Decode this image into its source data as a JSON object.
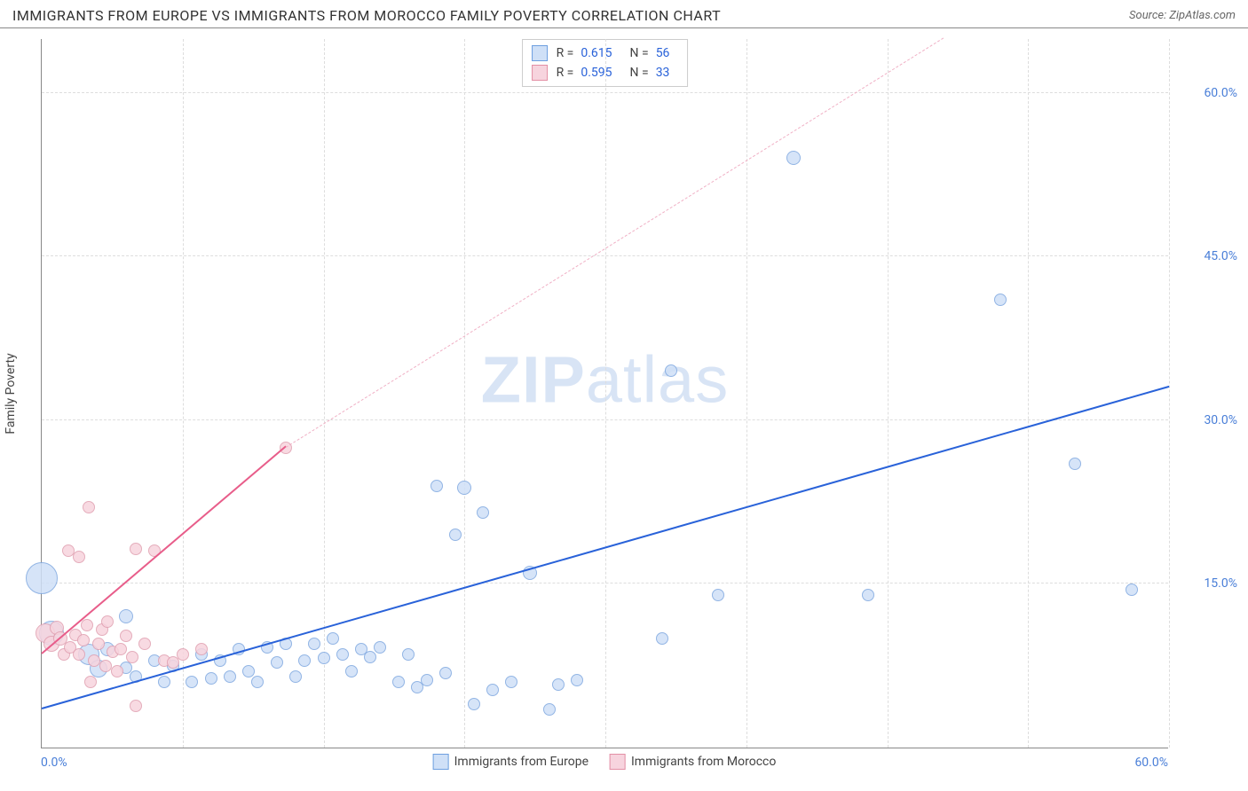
{
  "header": {
    "title": "IMMIGRANTS FROM EUROPE VS IMMIGRANTS FROM MOROCCO FAMILY POVERTY CORRELATION CHART",
    "source": "Source: ZipAtlas.com"
  },
  "chart": {
    "type": "scatter",
    "ylabel": "Family Poverty",
    "xlim": [
      0,
      60
    ],
    "ylim": [
      0,
      65
    ],
    "xticks": [
      0,
      60
    ],
    "xtick_labels": [
      "0.0%",
      "60.0%"
    ],
    "yticks": [
      15,
      30,
      45,
      60
    ],
    "ytick_labels": [
      "15.0%",
      "30.0%",
      "45.0%",
      "60.0%"
    ],
    "x_gridlines": [
      7.5,
      15,
      22.5,
      30,
      37.5,
      45,
      52.5,
      60
    ],
    "background_color": "#ffffff",
    "grid_color": "#dddddd",
    "axis_color": "#888888",
    "watermark": {
      "prefix": "ZIP",
      "suffix": "atlas"
    },
    "series": [
      {
        "name": "Immigrants from Europe",
        "marker_fill": "#cfe0f7",
        "marker_stroke": "#7fa8e0",
        "swatch_fill": "#cfe0f7",
        "swatch_stroke": "#6d9fe0",
        "trend_color": "#2962d9",
        "trend_dash_color": "#9fbef0",
        "r": "0.615",
        "n": "56",
        "trend": {
          "x1": 0,
          "y1": 3.5,
          "x2": 60,
          "y2": 33
        },
        "trend_dash": null,
        "points": [
          {
            "x": 0,
            "y": 15.5,
            "r": 18
          },
          {
            "x": 0.5,
            "y": 10.5,
            "r": 14
          },
          {
            "x": 2.5,
            "y": 8.5,
            "r": 12
          },
          {
            "x": 3,
            "y": 7.2,
            "r": 10
          },
          {
            "x": 3.5,
            "y": 9,
            "r": 8
          },
          {
            "x": 4.5,
            "y": 12,
            "r": 8
          },
          {
            "x": 5,
            "y": 6.5,
            "r": 7
          },
          {
            "x": 6,
            "y": 8,
            "r": 7
          },
          {
            "x": 6.5,
            "y": 6,
            "r": 7
          },
          {
            "x": 7,
            "y": 7.5,
            "r": 7
          },
          {
            "x": 8,
            "y": 6,
            "r": 7
          },
          {
            "x": 8.5,
            "y": 8.5,
            "r": 7
          },
          {
            "x": 9,
            "y": 6.3,
            "r": 7
          },
          {
            "x": 9.5,
            "y": 8,
            "r": 7
          },
          {
            "x": 10,
            "y": 6.5,
            "r": 7
          },
          {
            "x": 10.5,
            "y": 9,
            "r": 7
          },
          {
            "x": 11,
            "y": 7,
            "r": 7
          },
          {
            "x": 11.5,
            "y": 6,
            "r": 7
          },
          {
            "x": 12,
            "y": 9.2,
            "r": 7
          },
          {
            "x": 12.5,
            "y": 7.8,
            "r": 7
          },
          {
            "x": 13,
            "y": 9.5,
            "r": 7
          },
          {
            "x": 13.5,
            "y": 6.5,
            "r": 7
          },
          {
            "x": 14,
            "y": 8,
            "r": 7
          },
          {
            "x": 14.5,
            "y": 9.5,
            "r": 7
          },
          {
            "x": 15,
            "y": 8.2,
            "r": 7
          },
          {
            "x": 15.5,
            "y": 10,
            "r": 7
          },
          {
            "x": 16,
            "y": 8.5,
            "r": 7
          },
          {
            "x": 16.5,
            "y": 7,
            "r": 7
          },
          {
            "x": 17,
            "y": 9,
            "r": 7
          },
          {
            "x": 17.5,
            "y": 8.3,
            "r": 7
          },
          {
            "x": 18,
            "y": 9.2,
            "r": 7
          },
          {
            "x": 19,
            "y": 6,
            "r": 7
          },
          {
            "x": 19.5,
            "y": 8.5,
            "r": 7
          },
          {
            "x": 20,
            "y": 5.5,
            "r": 7
          },
          {
            "x": 20.5,
            "y": 6.2,
            "r": 7
          },
          {
            "x": 21,
            "y": 24,
            "r": 7
          },
          {
            "x": 21.5,
            "y": 6.8,
            "r": 7
          },
          {
            "x": 22,
            "y": 19.5,
            "r": 7
          },
          {
            "x": 22.5,
            "y": 23.8,
            "r": 8
          },
          {
            "x": 23,
            "y": 4,
            "r": 7
          },
          {
            "x": 23.5,
            "y": 21.5,
            "r": 7
          },
          {
            "x": 24,
            "y": 5.3,
            "r": 7
          },
          {
            "x": 25,
            "y": 6,
            "r": 7
          },
          {
            "x": 26,
            "y": 16,
            "r": 8
          },
          {
            "x": 27,
            "y": 3.5,
            "r": 7
          },
          {
            "x": 27.5,
            "y": 5.8,
            "r": 7
          },
          {
            "x": 28.5,
            "y": 6.2,
            "r": 7
          },
          {
            "x": 33,
            "y": 10,
            "r": 7
          },
          {
            "x": 33.5,
            "y": 34.5,
            "r": 7
          },
          {
            "x": 36,
            "y": 14,
            "r": 7
          },
          {
            "x": 40,
            "y": 54,
            "r": 8
          },
          {
            "x": 44,
            "y": 14,
            "r": 7
          },
          {
            "x": 51,
            "y": 41,
            "r": 7
          },
          {
            "x": 55,
            "y": 26,
            "r": 7
          },
          {
            "x": 58,
            "y": 14.5,
            "r": 7
          },
          {
            "x": 4.5,
            "y": 7.3,
            "r": 7
          }
        ]
      },
      {
        "name": "Immigrants from Morocco",
        "marker_fill": "#f7d4de",
        "marker_stroke": "#e09fb0",
        "swatch_fill": "#f7d4de",
        "swatch_stroke": "#e38fa5",
        "trend_color": "#e85d8a",
        "trend_dash_color": "#f0b0c5",
        "r": "0.595",
        "n": "33",
        "trend": {
          "x1": 0,
          "y1": 8.5,
          "x2": 13,
          "y2": 27.5
        },
        "trend_dash": {
          "x1": 13,
          "y1": 27.5,
          "x2": 48,
          "y2": 65
        },
        "points": [
          {
            "x": 0.2,
            "y": 10.5,
            "r": 11
          },
          {
            "x": 0.5,
            "y": 9.5,
            "r": 9
          },
          {
            "x": 0.8,
            "y": 11,
            "r": 8
          },
          {
            "x": 1,
            "y": 10,
            "r": 8
          },
          {
            "x": 1.2,
            "y": 8.5,
            "r": 7
          },
          {
            "x": 1.4,
            "y": 18,
            "r": 7
          },
          {
            "x": 1.5,
            "y": 9.2,
            "r": 7
          },
          {
            "x": 1.8,
            "y": 10.3,
            "r": 7
          },
          {
            "x": 2,
            "y": 17.5,
            "r": 7
          },
          {
            "x": 2,
            "y": 8.5,
            "r": 7
          },
          {
            "x": 2.2,
            "y": 9.8,
            "r": 7
          },
          {
            "x": 2.4,
            "y": 11.2,
            "r": 7
          },
          {
            "x": 2.5,
            "y": 22,
            "r": 7
          },
          {
            "x": 2.6,
            "y": 6,
            "r": 7
          },
          {
            "x": 2.8,
            "y": 8,
            "r": 7
          },
          {
            "x": 3,
            "y": 9.5,
            "r": 7
          },
          {
            "x": 3.2,
            "y": 10.8,
            "r": 7
          },
          {
            "x": 3.4,
            "y": 7.5,
            "r": 7
          },
          {
            "x": 3.5,
            "y": 11.5,
            "r": 7
          },
          {
            "x": 3.8,
            "y": 8.8,
            "r": 7
          },
          {
            "x": 4,
            "y": 7,
            "r": 7
          },
          {
            "x": 4.2,
            "y": 9,
            "r": 7
          },
          {
            "x": 4.5,
            "y": 10.2,
            "r": 7
          },
          {
            "x": 4.8,
            "y": 8.3,
            "r": 7
          },
          {
            "x": 5,
            "y": 18.2,
            "r": 7
          },
          {
            "x": 5,
            "y": 3.8,
            "r": 7
          },
          {
            "x": 5.5,
            "y": 9.5,
            "r": 7
          },
          {
            "x": 6,
            "y": 18,
            "r": 7
          },
          {
            "x": 6.5,
            "y": 8,
            "r": 7
          },
          {
            "x": 7,
            "y": 7.8,
            "r": 7
          },
          {
            "x": 7.5,
            "y": 8.5,
            "r": 7
          },
          {
            "x": 8.5,
            "y": 9,
            "r": 7
          },
          {
            "x": 13,
            "y": 27.5,
            "r": 7
          }
        ]
      }
    ],
    "bottom_legend": [
      {
        "swatch_fill": "#cfe0f7",
        "swatch_stroke": "#6d9fe0",
        "label": "Immigrants from Europe"
      },
      {
        "swatch_fill": "#f7d4de",
        "swatch_stroke": "#e38fa5",
        "label": "Immigrants from Morocco"
      }
    ]
  }
}
